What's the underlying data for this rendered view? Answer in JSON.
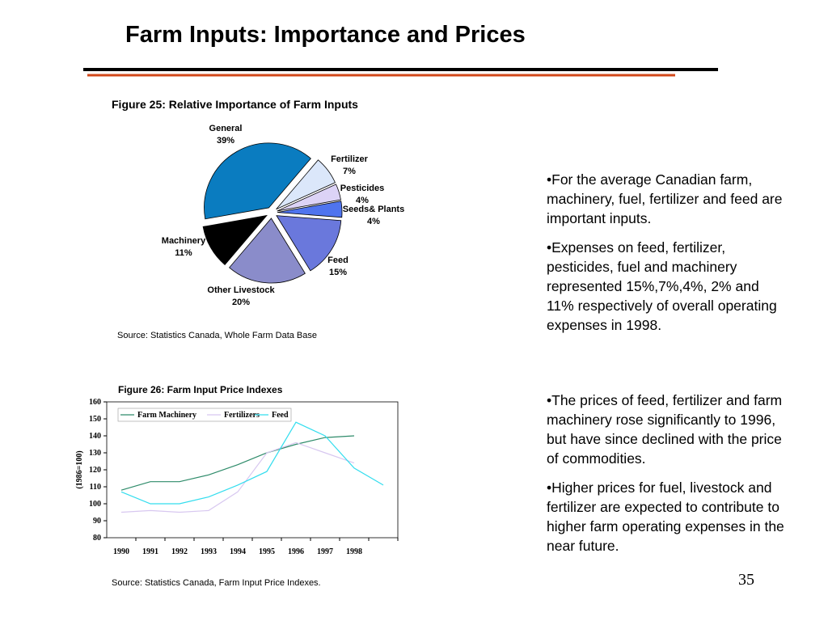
{
  "title": "Farm Inputs: Importance and Prices",
  "chart_data": [
    {
      "type": "pie",
      "title": "Figure 25: Relative Importance of Farm Inputs",
      "categories": [
        "General",
        "Fertilizer",
        "Pesticides",
        "Seeds& Plants",
        "Feed",
        "Other Livestock",
        "Machinery"
      ],
      "values": [
        39,
        7,
        4,
        4,
        15,
        20,
        11
      ],
      "value_labels": [
        "39%",
        "7%",
        "4%",
        "4%",
        "15%",
        "20%",
        "11%"
      ],
      "colors": [
        "#0a7cc0",
        "#dbe7fa",
        "#dcd3f6",
        "#4f74ee",
        "#6a78dc",
        "#8a8cca",
        "#000000"
      ],
      "source": "Source:  Statistics Canada, Whole Farm Data Base"
    },
    {
      "type": "line",
      "title": "Figure 26: Farm Input Price Indexes",
      "y_label": "(1986=100)",
      "categories": [
        "1990",
        "1991",
        "1992",
        "1993",
        "1994",
        "1995",
        "1996",
        "1997",
        "1998",
        null
      ],
      "series": [
        {
          "name": "Farm Machinery",
          "color": "#2e8b6a",
          "values": [
            108,
            113,
            113,
            117,
            123,
            130,
            135,
            139,
            140,
            null
          ]
        },
        {
          "name": "Fertilizers",
          "color": "#d8c8f0",
          "values": [
            95,
            96,
            95,
            96,
            107,
            130,
            136,
            130,
            124,
            null
          ]
        },
        {
          "name": "Feed",
          "color": "#33ddee",
          "values": [
            107,
            100,
            100,
            104,
            111,
            119,
            148,
            140,
            121,
            111
          ]
        }
      ],
      "ylim": [
        80,
        160
      ],
      "yticks": [
        80,
        90,
        100,
        110,
        120,
        130,
        140,
        150,
        160
      ],
      "legend": "top",
      "source": "Source: Statistics Canada, Farm Input Price Indexes."
    }
  ],
  "bullets_top": [
    "•For the average Canadian farm,  machinery, fuel, fertilizer and feed are important inputs.",
    "•Expenses on feed, fertilizer, pesticides, fuel and machinery represented  15%,7%,4%, 2% and 11% respectively of overall operating expenses in 1998."
  ],
  "bullets_bottom": [
    "•The prices of feed, fertilizer and farm machinery rose significantly to 1996, but have since declined with the price of commodities.",
    "•Higher prices for fuel, livestock and fertilizer are expected to contribute to higher farm operating expenses in the near future."
  ],
  "page_number": "35"
}
